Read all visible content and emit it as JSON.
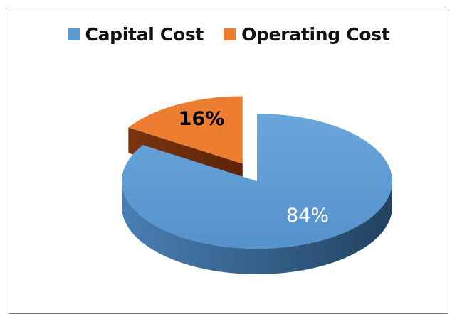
{
  "chart_data": {
    "type": "pie",
    "style": "3d-exploded",
    "title": "",
    "categories": [
      "Capital Cost",
      "Operating Cost"
    ],
    "values": [
      84,
      16
    ],
    "data_labels": [
      "84%",
      "16%"
    ],
    "colors": [
      "#5b9bd5",
      "#ed7d31"
    ],
    "legend_position": "top"
  }
}
